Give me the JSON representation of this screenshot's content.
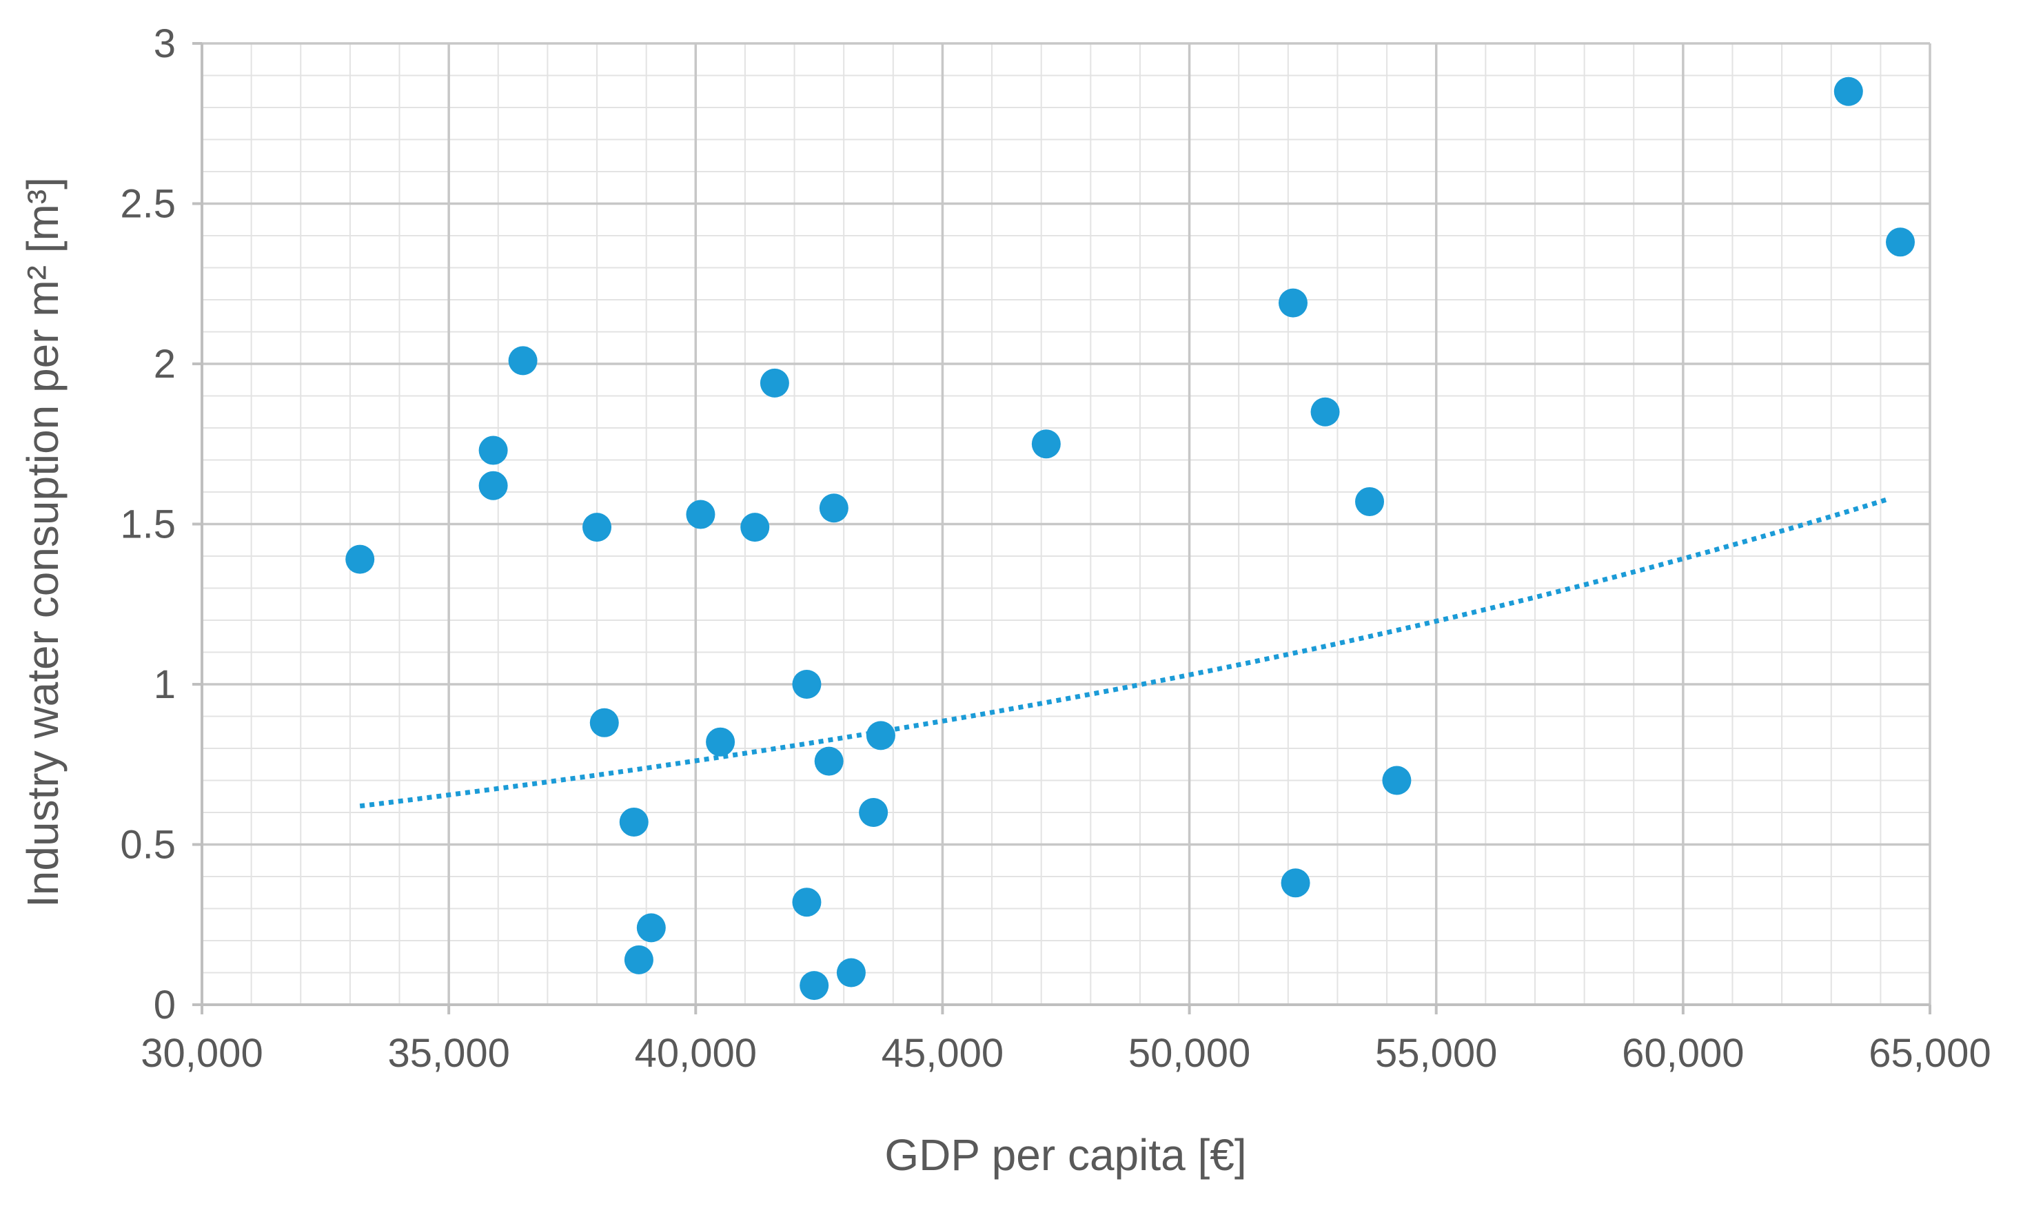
{
  "chart_data": {
    "type": "scatter",
    "title": "",
    "xlabel": "GDP per capita [€]",
    "ylabel": "Industry water consuption per m² [m³]",
    "xlim": [
      30000,
      65000
    ],
    "ylim": [
      0,
      3
    ],
    "x_ticks": [
      30000,
      35000,
      40000,
      45000,
      50000,
      55000,
      60000,
      65000
    ],
    "x_tick_labels": [
      "30,000",
      "35,000",
      "40,000",
      "45,000",
      "50,000",
      "55,000",
      "60,000",
      "65,000"
    ],
    "y_ticks": [
      0,
      0.5,
      1,
      1.5,
      2,
      2.5,
      3
    ],
    "y_tick_labels": [
      "0",
      "0.5",
      "1",
      "1.5",
      "2",
      "2.5",
      "3"
    ],
    "grid": true,
    "marker_color": "#1b9bd7",
    "trendline": {
      "type": "exponential",
      "style": "dotted",
      "color": "#1b9bd7",
      "x_start": 33200,
      "x_end": 64200,
      "y_start": 0.62,
      "y_end": 1.58
    },
    "points": [
      {
        "x": 33200,
        "y": 1.39
      },
      {
        "x": 35900,
        "y": 1.73
      },
      {
        "x": 35900,
        "y": 1.62
      },
      {
        "x": 36500,
        "y": 2.01
      },
      {
        "x": 38000,
        "y": 1.49
      },
      {
        "x": 38150,
        "y": 0.88
      },
      {
        "x": 38750,
        "y": 0.57
      },
      {
        "x": 38850,
        "y": 0.14
      },
      {
        "x": 39100,
        "y": 0.24
      },
      {
        "x": 40100,
        "y": 1.53
      },
      {
        "x": 40500,
        "y": 0.82
      },
      {
        "x": 41200,
        "y": 1.49
      },
      {
        "x": 41600,
        "y": 1.94
      },
      {
        "x": 42250,
        "y": 1.0
      },
      {
        "x": 42250,
        "y": 0.32
      },
      {
        "x": 42400,
        "y": 0.06
      },
      {
        "x": 42700,
        "y": 0.76
      },
      {
        "x": 42800,
        "y": 1.55
      },
      {
        "x": 43150,
        "y": 0.1
      },
      {
        "x": 43600,
        "y": 0.6
      },
      {
        "x": 43750,
        "y": 0.84
      },
      {
        "x": 47100,
        "y": 1.75
      },
      {
        "x": 52100,
        "y": 2.19
      },
      {
        "x": 52150,
        "y": 0.38
      },
      {
        "x": 52750,
        "y": 1.85
      },
      {
        "x": 53650,
        "y": 1.57
      },
      {
        "x": 54200,
        "y": 0.7
      },
      {
        "x": 63350,
        "y": 2.85
      },
      {
        "x": 64400,
        "y": 2.38
      }
    ]
  }
}
